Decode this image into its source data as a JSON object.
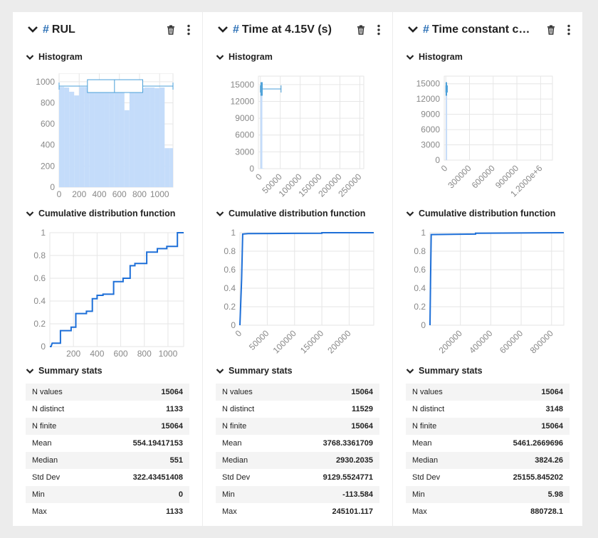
{
  "colors": {
    "accent": "#2a6fb5",
    "bar": "#c4dcfa",
    "line": "#1d6fd8",
    "box": "#4a9fd8",
    "grid": "#e6e6e6"
  },
  "sections": {
    "histogram": "Histogram",
    "cdf": "Cumulative distribution function",
    "summary": "Summary stats"
  },
  "cards": [
    {
      "name": "RUL",
      "stats": [
        {
          "label": "N values",
          "value": "15064"
        },
        {
          "label": "N distinct",
          "value": "1133"
        },
        {
          "label": "N finite",
          "value": "15064"
        },
        {
          "label": "Mean",
          "value": "554.19417153"
        },
        {
          "label": "Median",
          "value": "551"
        },
        {
          "label": "Std Dev",
          "value": "322.43451408"
        },
        {
          "label": "Min",
          "value": "0"
        },
        {
          "label": "Max",
          "value": "1133"
        }
      ]
    },
    {
      "name": "Time at 4.15V (s)",
      "stats": [
        {
          "label": "N values",
          "value": "15064"
        },
        {
          "label": "N distinct",
          "value": "11529"
        },
        {
          "label": "N finite",
          "value": "15064"
        },
        {
          "label": "Mean",
          "value": "3768.3361709"
        },
        {
          "label": "Median",
          "value": "2930.2035"
        },
        {
          "label": "Std Dev",
          "value": "9129.5524771"
        },
        {
          "label": "Min",
          "value": "-113.584"
        },
        {
          "label": "Max",
          "value": "245101.117"
        }
      ]
    },
    {
      "name": "Time constant cu…",
      "stats": [
        {
          "label": "N values",
          "value": "15064"
        },
        {
          "label": "N distinct",
          "value": "3148"
        },
        {
          "label": "N finite",
          "value": "15064"
        },
        {
          "label": "Mean",
          "value": "5461.2669696"
        },
        {
          "label": "Median",
          "value": "3824.26"
        },
        {
          "label": "Std Dev",
          "value": "25155.845202"
        },
        {
          "label": "Min",
          "value": "5.98"
        },
        {
          "label": "Max",
          "value": "880728.1"
        }
      ]
    }
  ],
  "chart_data": [
    {
      "type": "bar",
      "chart": "histogram",
      "card": 0,
      "bin_edges": [
        0,
        50,
        100,
        150,
        200,
        250,
        300,
        350,
        400,
        450,
        500,
        550,
        600,
        650,
        700,
        750,
        800,
        850,
        900,
        950,
        1000,
        1050,
        1100,
        1133
      ],
      "values": [
        950,
        945,
        905,
        870,
        950,
        950,
        920,
        915,
        930,
        945,
        950,
        950,
        945,
        730,
        950,
        950,
        940,
        945,
        945,
        940,
        945,
        370,
        370
      ],
      "xlim": [
        0,
        1133
      ],
      "ylim": [
        0,
        1080
      ],
      "xticks": [
        "0",
        "200",
        "400",
        "600",
        "800",
        "1000"
      ],
      "yticks": [
        "0",
        "200",
        "400",
        "600",
        "800",
        "1000"
      ],
      "xtick_values": [
        0,
        200,
        400,
        600,
        800,
        1000
      ],
      "ytick_values": [
        0,
        200,
        400,
        600,
        800,
        1000
      ],
      "xtick_rotate": false,
      "box": {
        "whisker_low": 0,
        "q1": 282,
        "median": 551,
        "q3": 832,
        "whisker_high": 1133
      }
    },
    {
      "type": "line",
      "chart": "cdf",
      "card": 0,
      "x": [
        0,
        10,
        20,
        20,
        90,
        90,
        180,
        180,
        220,
        220,
        310,
        310,
        360,
        360,
        400,
        400,
        450,
        450,
        540,
        540,
        620,
        620,
        680,
        680,
        720,
        720,
        820,
        820,
        910,
        910,
        990,
        990,
        1080,
        1080,
        1133
      ],
      "y": [
        0,
        0,
        0.03,
        0.03,
        0.03,
        0.14,
        0.14,
        0.17,
        0.17,
        0.29,
        0.29,
        0.31,
        0.31,
        0.42,
        0.42,
        0.45,
        0.45,
        0.46,
        0.46,
        0.57,
        0.57,
        0.6,
        0.6,
        0.71,
        0.71,
        0.73,
        0.73,
        0.83,
        0.83,
        0.86,
        0.86,
        0.88,
        0.88,
        1,
        1
      ],
      "xlim": [
        0,
        1133
      ],
      "ylim": [
        0,
        1
      ],
      "xticks": [
        "200",
        "400",
        "600",
        "800",
        "1000"
      ],
      "yticks": [
        "0",
        "0.2",
        "0.4",
        "0.6",
        "0.8",
        "1"
      ],
      "xtick_values": [
        200,
        400,
        600,
        800,
        1000
      ],
      "ytick_values": [
        0,
        0.2,
        0.4,
        0.6,
        0.8,
        1
      ],
      "xtick_rotate": false
    },
    {
      "type": "bar",
      "chart": "histogram",
      "card": 1,
      "bin_edges": [
        -113.584,
        4886,
        9886
      ],
      "values": [
        15000,
        64
      ],
      "xlim": [
        -5000,
        260000
      ],
      "ylim": [
        0,
        16500
      ],
      "xticks": [
        "0",
        "50000",
        "100000",
        "150000",
        "200000",
        "250000"
      ],
      "yticks": [
        "0",
        "3000",
        "6000",
        "9000",
        "12000",
        "15000"
      ],
      "xtick_values": [
        0,
        50000,
        100000,
        150000,
        200000,
        250000
      ],
      "ytick_values": [
        0,
        3000,
        6000,
        9000,
        12000,
        15000
      ],
      "xtick_rotate": true,
      "box": {
        "whisker_low": -113.584,
        "q1": 1200,
        "median": 2930.2035,
        "q3": 4800,
        "whisker_high": 52000
      }
    },
    {
      "type": "line",
      "chart": "cdf",
      "card": 1,
      "x": [
        -113.584,
        3000,
        5000,
        15000,
        100000,
        150000,
        150000,
        245101.117
      ],
      "y": [
        0,
        0.5,
        0.985,
        0.99,
        0.993,
        0.995,
        1,
        1
      ],
      "xlim": [
        -113.584,
        245101.117
      ],
      "ylim": [
        0,
        1
      ],
      "xticks": [
        "0",
        "50000",
        "100000",
        "150000",
        "200000"
      ],
      "yticks": [
        "0",
        "0.2",
        "0.4",
        "0.6",
        "0.8",
        "1"
      ],
      "xtick_values": [
        0,
        50000,
        100000,
        150000,
        200000
      ],
      "ytick_values": [
        0,
        0.2,
        0.4,
        0.6,
        0.8,
        1
      ],
      "xtick_rotate": true
    },
    {
      "type": "bar",
      "chart": "histogram",
      "card": 2,
      "bin_edges": [
        5.98,
        17000
      ],
      "values": [
        15000
      ],
      "xlim": [
        -20000,
        1350000
      ],
      "ylim": [
        0,
        16500
      ],
      "xticks": [
        "0",
        "300000",
        "600000",
        "900000",
        "1.2000e+6"
      ],
      "yticks": [
        "0",
        "3000",
        "6000",
        "9000",
        "12000",
        "15000"
      ],
      "xtick_values": [
        0,
        300000,
        600000,
        900000,
        1200000
      ],
      "ytick_values": [
        0,
        3000,
        6000,
        9000,
        12000,
        15000
      ],
      "xtick_rotate": true,
      "box": {
        "whisker_low": 5.98,
        "q1": 2000,
        "median": 3824.26,
        "q3": 7000,
        "whisker_high": 20000
      }
    },
    {
      "type": "line",
      "chart": "cdf",
      "card": 2,
      "x": [
        5.98,
        3824.26,
        8000,
        300000,
        300000,
        880728.1
      ],
      "y": [
        0,
        0.5,
        0.98,
        0.985,
        0.995,
        1
      ],
      "xlim": [
        5.98,
        880728.1
      ],
      "ylim": [
        0,
        1
      ],
      "xticks": [
        "200000",
        "400000",
        "600000",
        "800000"
      ],
      "yticks": [
        "0",
        "0.2",
        "0.4",
        "0.6",
        "0.8",
        "1"
      ],
      "xtick_values": [
        200000,
        400000,
        600000,
        800000
      ],
      "ytick_values": [
        0,
        0.2,
        0.4,
        0.6,
        0.8,
        1
      ],
      "xtick_rotate": true
    }
  ]
}
